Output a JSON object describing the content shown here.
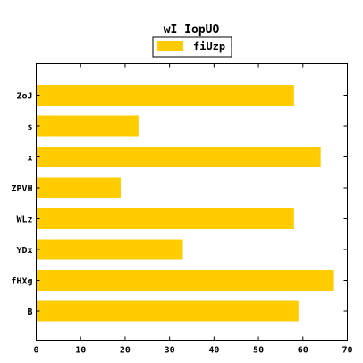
{
  "chart_data": {
    "type": "bar",
    "orientation": "horizontal",
    "title": "wI IopUO",
    "xlabel": "",
    "ylabel": "",
    "categories": [
      "B",
      "fHXg",
      "YDx",
      "WLz",
      "ZPVH",
      "x",
      "s",
      "ZoJ"
    ],
    "series": [
      {
        "name": "fiUzp",
        "values": [
          59,
          67,
          33,
          58,
          19,
          64,
          23,
          58
        ]
      }
    ],
    "xlim": [
      0,
      70
    ],
    "xticks": [
      0,
      10,
      20,
      30,
      40,
      50,
      60,
      70
    ],
    "grid": false,
    "legend_position": "top-center",
    "colors": {
      "bar": "#ffcc00",
      "axis": "#000000",
      "background": "#ffffff"
    }
  }
}
